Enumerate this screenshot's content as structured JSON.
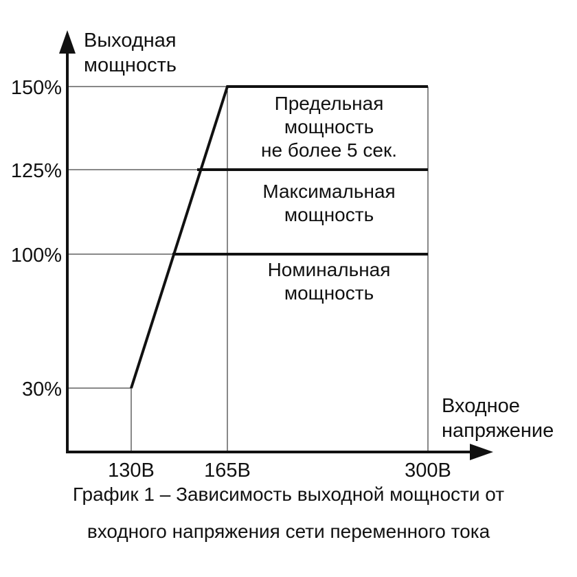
{
  "chart_data": {
    "type": "line",
    "x": [
      130,
      165,
      300
    ],
    "series": [
      {
        "name": "",
        "points": [
          {
            "x": 130,
            "y": 30
          },
          {
            "x": 165,
            "y": 150
          },
          {
            "x": 300,
            "y": 150
          }
        ]
      }
    ],
    "levels": [
      {
        "y": 100,
        "from_x": 145,
        "to_x": 300,
        "label": [
          "Номинальная",
          "мощность"
        ]
      },
      {
        "y": 125,
        "from_x": 154,
        "to_x": 300,
        "label": [
          "Максимальная",
          "мощность"
        ]
      },
      {
        "y": 150,
        "from_x": 165,
        "to_x": 300,
        "label": [
          "Предельная",
          "мощность",
          "не более 5 сек."
        ]
      }
    ],
    "xlabel": [
      "Входное",
      "напряжение"
    ],
    "ylabel": [
      "Выходная",
      "мощность"
    ],
    "x_ticks": [
      {
        "value": 130,
        "label": "130В"
      },
      {
        "value": 165,
        "label": "165В"
      },
      {
        "value": 300,
        "label": "300В"
      }
    ],
    "y_ticks": [
      {
        "value": 30,
        "label": "30%"
      },
      {
        "value": 100,
        "label": "100%"
      },
      {
        "value": 125,
        "label": "125%"
      },
      {
        "value": 150,
        "label": "150%"
      }
    ],
    "grid": true,
    "colors": {
      "line": "#111111",
      "grid": "#111111",
      "text": "#111111"
    },
    "caption": [
      "График 1 – Зависимость выходной мощности от",
      "входного напряжения сети переменного тока"
    ]
  }
}
